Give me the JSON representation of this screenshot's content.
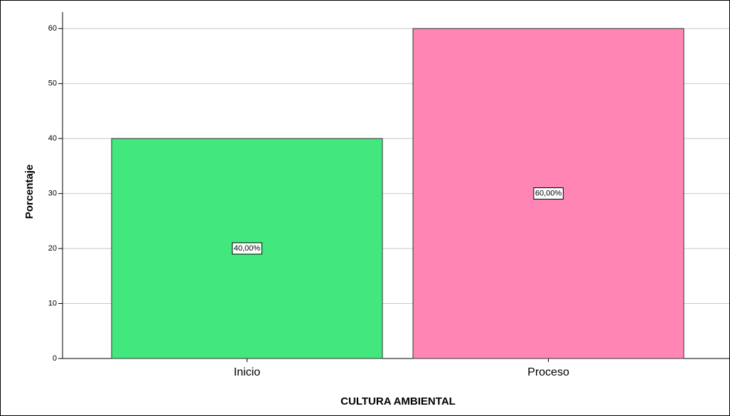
{
  "chart_data": {
    "type": "bar",
    "x_label": "CULTURA AMBIENTAL",
    "y_label": "Porcentaje",
    "categories": [
      "Inicio",
      "Proceso"
    ],
    "values": [
      40,
      60
    ],
    "value_labels": [
      "40,00%",
      "60,00%"
    ],
    "colors": [
      "#42e87d",
      "#ff85b4"
    ],
    "ylim": [
      0,
      63
    ],
    "yticks": [
      0,
      10,
      20,
      30,
      40,
      50,
      60
    ],
    "grid": true
  }
}
